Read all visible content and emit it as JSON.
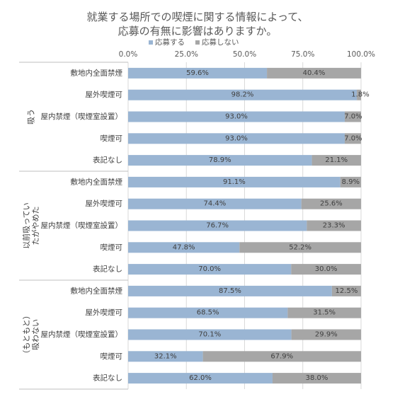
{
  "chart_data": {
    "type": "bar",
    "orientation": "horizontal",
    "stacked": "percent",
    "title_lines": [
      "就業する場所での喫煙に関する情報によって、",
      "応募の有無に影響はありますか。"
    ],
    "legend": {
      "position": "top"
    },
    "colors": {
      "apply": "#9ab5d3",
      "no_apply": "#a6a6a6",
      "grid": "#d9d9d9",
      "separator": "#bfbfbf"
    },
    "xlim": [
      0,
      100
    ],
    "x_ticks": [
      "0.0%",
      "25.0%",
      "50.0%",
      "75.0%",
      "100.0%"
    ],
    "series": [
      {
        "name": "応募する"
      },
      {
        "name": "応募しない"
      }
    ],
    "groups": [
      {
        "label": "吸う",
        "rows": [
          {
            "category": "敷地内全面禁煙",
            "values": [
              59.6,
              40.4
            ],
            "labels": [
              "59.6%",
              "40.4%"
            ]
          },
          {
            "category": "屋外喫煙可",
            "values": [
              98.2,
              1.8
            ],
            "labels": [
              "98.2%",
              "1.8%"
            ]
          },
          {
            "category": "屋内禁煙（喫煙室設置）",
            "values": [
              93.0,
              7.0
            ],
            "labels": [
              "93.0%",
              "7.0%"
            ]
          },
          {
            "category": "喫煙可",
            "values": [
              93.0,
              7.0
            ],
            "labels": [
              "93.0%",
              "7.0%"
            ]
          },
          {
            "category": "表記なし",
            "values": [
              78.9,
              21.1
            ],
            "labels": [
              "78.9%",
              "21.1%"
            ]
          }
        ]
      },
      {
        "label": "以前吸っていたがやめた",
        "label_lines": [
          "以前吸ってい",
          "たがやめた"
        ],
        "rows": [
          {
            "category": "敷地内全面禁煙",
            "values": [
              91.1,
              8.9
            ],
            "labels": [
              "91.1%",
              "8.9%"
            ]
          },
          {
            "category": "屋外喫煙可",
            "values": [
              74.4,
              25.6
            ],
            "labels": [
              "74.4%",
              "25.6%"
            ]
          },
          {
            "category": "屋内禁煙（喫煙室設置）",
            "values": [
              76.7,
              23.3
            ],
            "labels": [
              "76.7%",
              "23.3%"
            ]
          },
          {
            "category": "喫煙可",
            "values": [
              47.8,
              52.2
            ],
            "labels": [
              "47.8%",
              "52.2%"
            ]
          },
          {
            "category": "表記なし",
            "values": [
              70.0,
              30.0
            ],
            "labels": [
              "70.0%",
              "30.0%"
            ]
          }
        ]
      },
      {
        "label": "（もともと）吸わない",
        "label_lines": [
          "（もともと）",
          "吸わない"
        ],
        "rows": [
          {
            "category": "敷地内全面禁煙",
            "values": [
              87.5,
              12.5
            ],
            "labels": [
              "87.5%",
              "12.5%"
            ]
          },
          {
            "category": "屋外喫煙可",
            "values": [
              68.5,
              31.5
            ],
            "labels": [
              "68.5%",
              "31.5%"
            ]
          },
          {
            "category": "屋内禁煙（喫煙室設置）",
            "values": [
              70.1,
              29.9
            ],
            "labels": [
              "70.1%",
              "29.9%"
            ]
          },
          {
            "category": "喫煙可",
            "values": [
              32.1,
              67.9
            ],
            "labels": [
              "32.1%",
              "67.9%"
            ]
          },
          {
            "category": "表記なし",
            "values": [
              62.0,
              38.0
            ],
            "labels": [
              "62.0%",
              "38.0%"
            ]
          }
        ]
      }
    ]
  }
}
